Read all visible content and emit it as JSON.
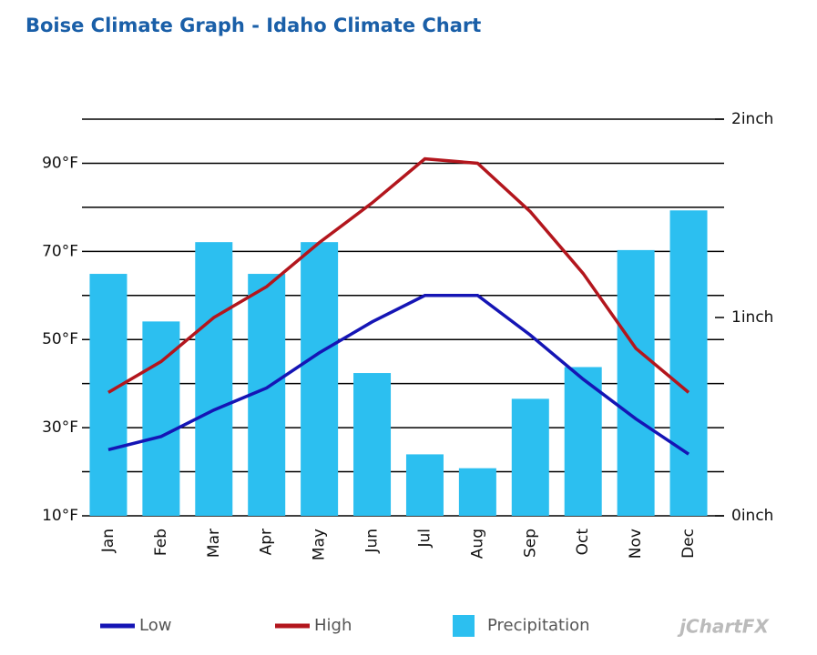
{
  "chart_data": {
    "type": "combo",
    "title": "Boise Climate Graph - Idaho Climate Chart",
    "categories": [
      "Jan",
      "Feb",
      "Mar",
      "Apr",
      "May",
      "Jun",
      "Jul",
      "Aug",
      "Sep",
      "Oct",
      "Nov",
      "Dec"
    ],
    "series": [
      {
        "name": "Low",
        "type": "line",
        "color": "#1515b5",
        "values": [
          25,
          28,
          34,
          39,
          47,
          54,
          60,
          60,
          51,
          41,
          32,
          24
        ]
      },
      {
        "name": "High",
        "type": "line",
        "color": "#b3161d",
        "values": [
          38,
          45,
          55,
          62,
          72,
          81,
          91,
          90,
          79,
          65,
          48,
          38
        ]
      },
      {
        "name": "Precipitation",
        "type": "bar",
        "axis": "y2",
        "color": "#2cbff0",
        "values": [
          1.22,
          0.98,
          1.38,
          1.22,
          1.38,
          0.72,
          0.31,
          0.24,
          0.59,
          0.75,
          1.34,
          1.54
        ]
      }
    ],
    "ylim": [
      10,
      100
    ],
    "yticks": [
      {
        "value": 10,
        "label": "10°F"
      },
      {
        "value": 20,
        "label": null
      },
      {
        "value": 30,
        "label": "30°F"
      },
      {
        "value": 40,
        "label": null
      },
      {
        "value": 50,
        "label": "50°F"
      },
      {
        "value": 60,
        "label": null
      },
      {
        "value": 70,
        "label": "70°F"
      },
      {
        "value": 80,
        "label": null
      },
      {
        "value": 90,
        "label": "90°F"
      },
      {
        "value": 100,
        "label": null
      }
    ],
    "y2lim": [
      0,
      2
    ],
    "y2ticks": [
      {
        "value": 0,
        "label": "0inch"
      },
      {
        "value": 1,
        "label": "1inch"
      },
      {
        "value": 2,
        "label": "2inch"
      }
    ],
    "grid": true,
    "legend": "bottom",
    "watermark": "jChartFX"
  }
}
